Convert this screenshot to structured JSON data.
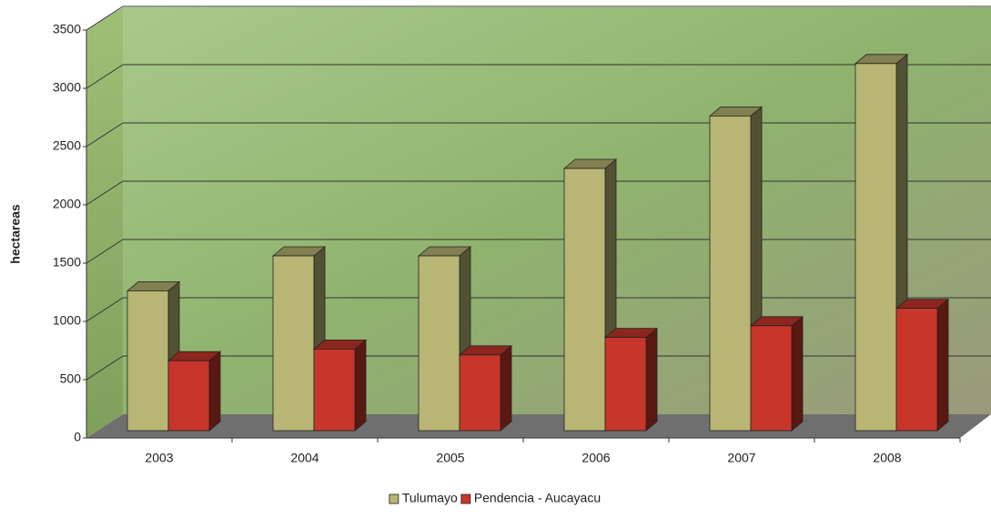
{
  "chart_data": {
    "type": "bar3d",
    "y_label": "hectareas",
    "categories": [
      "2003",
      "2004",
      "2005",
      "2006",
      "2007",
      "2008"
    ],
    "series": [
      {
        "name": "Tulumayo",
        "color": "#b9b574",
        "values": [
          1200,
          1500,
          1500,
          2250,
          2700,
          3150
        ]
      },
      {
        "name": "Pendencia - Aucayacu",
        "color": "#c8362b",
        "values": [
          600,
          700,
          650,
          800,
          900,
          1050
        ]
      }
    ],
    "ylim": [
      0,
      3500
    ],
    "yticks": [
      0,
      500,
      1000,
      1500,
      2000,
      2500,
      3000,
      3500
    ],
    "grid": true,
    "legend": "bottom"
  }
}
